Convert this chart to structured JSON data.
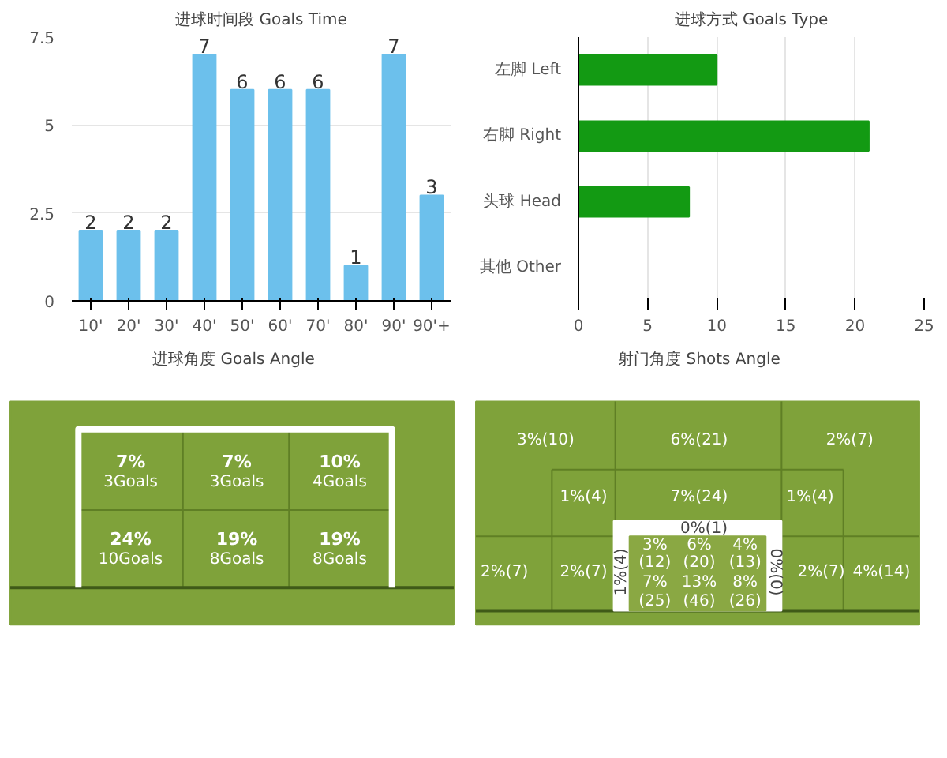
{
  "chart_data": [
    {
      "type": "bar",
      "title": "进球时间段 Goals Time",
      "categories": [
        "10'",
        "20'",
        "30'",
        "40'",
        "50'",
        "60'",
        "70'",
        "80'",
        "90'",
        "90'+"
      ],
      "values": [
        2,
        2,
        2,
        7,
        6,
        6,
        6,
        1,
        7,
        3
      ],
      "color": "#6cc0ec",
      "ylim": [
        0,
        7.5
      ],
      "yticks": [
        0,
        2.5,
        5,
        7.5
      ],
      "grid": "y",
      "data_labels": true
    },
    {
      "type": "bar",
      "orientation": "horizontal",
      "title": "进球方式 Goals Type",
      "categories": [
        "左脚 Left",
        "右脚 Right",
        "头球 Head",
        "其他 Other"
      ],
      "values": [
        10,
        21,
        8,
        0
      ],
      "color": "#139a13",
      "xlim": [
        0,
        25
      ],
      "xticks": [
        0,
        5,
        10,
        15,
        20,
        25
      ],
      "grid": "x"
    },
    {
      "type": "other",
      "title": "进球角度 Goals Angle",
      "annotations": [
        "7%",
        "3Goals",
        "7%",
        "3Goals",
        "10%",
        "4Goals",
        "24%",
        "10Goals",
        "19%",
        "8Goals",
        "19%",
        "8Goals"
      ]
    },
    {
      "type": "other",
      "title": "射门角度 Shots Angle",
      "annotations": [
        "3%(10)",
        "6%(21)",
        "2%(7)",
        "1%(4)",
        "7%(24)",
        "1%(4)",
        "0%(1)",
        "2%(7)",
        "2%(7)",
        "1%(4)",
        "3%",
        "(12)",
        "6%",
        "(20)",
        "4%",
        "(13)",
        "7%",
        "(25)",
        "13%",
        "(46)",
        "8%",
        "(26)",
        "0%(0)",
        "2%(7)",
        "4%(14)"
      ]
    }
  ]
}
